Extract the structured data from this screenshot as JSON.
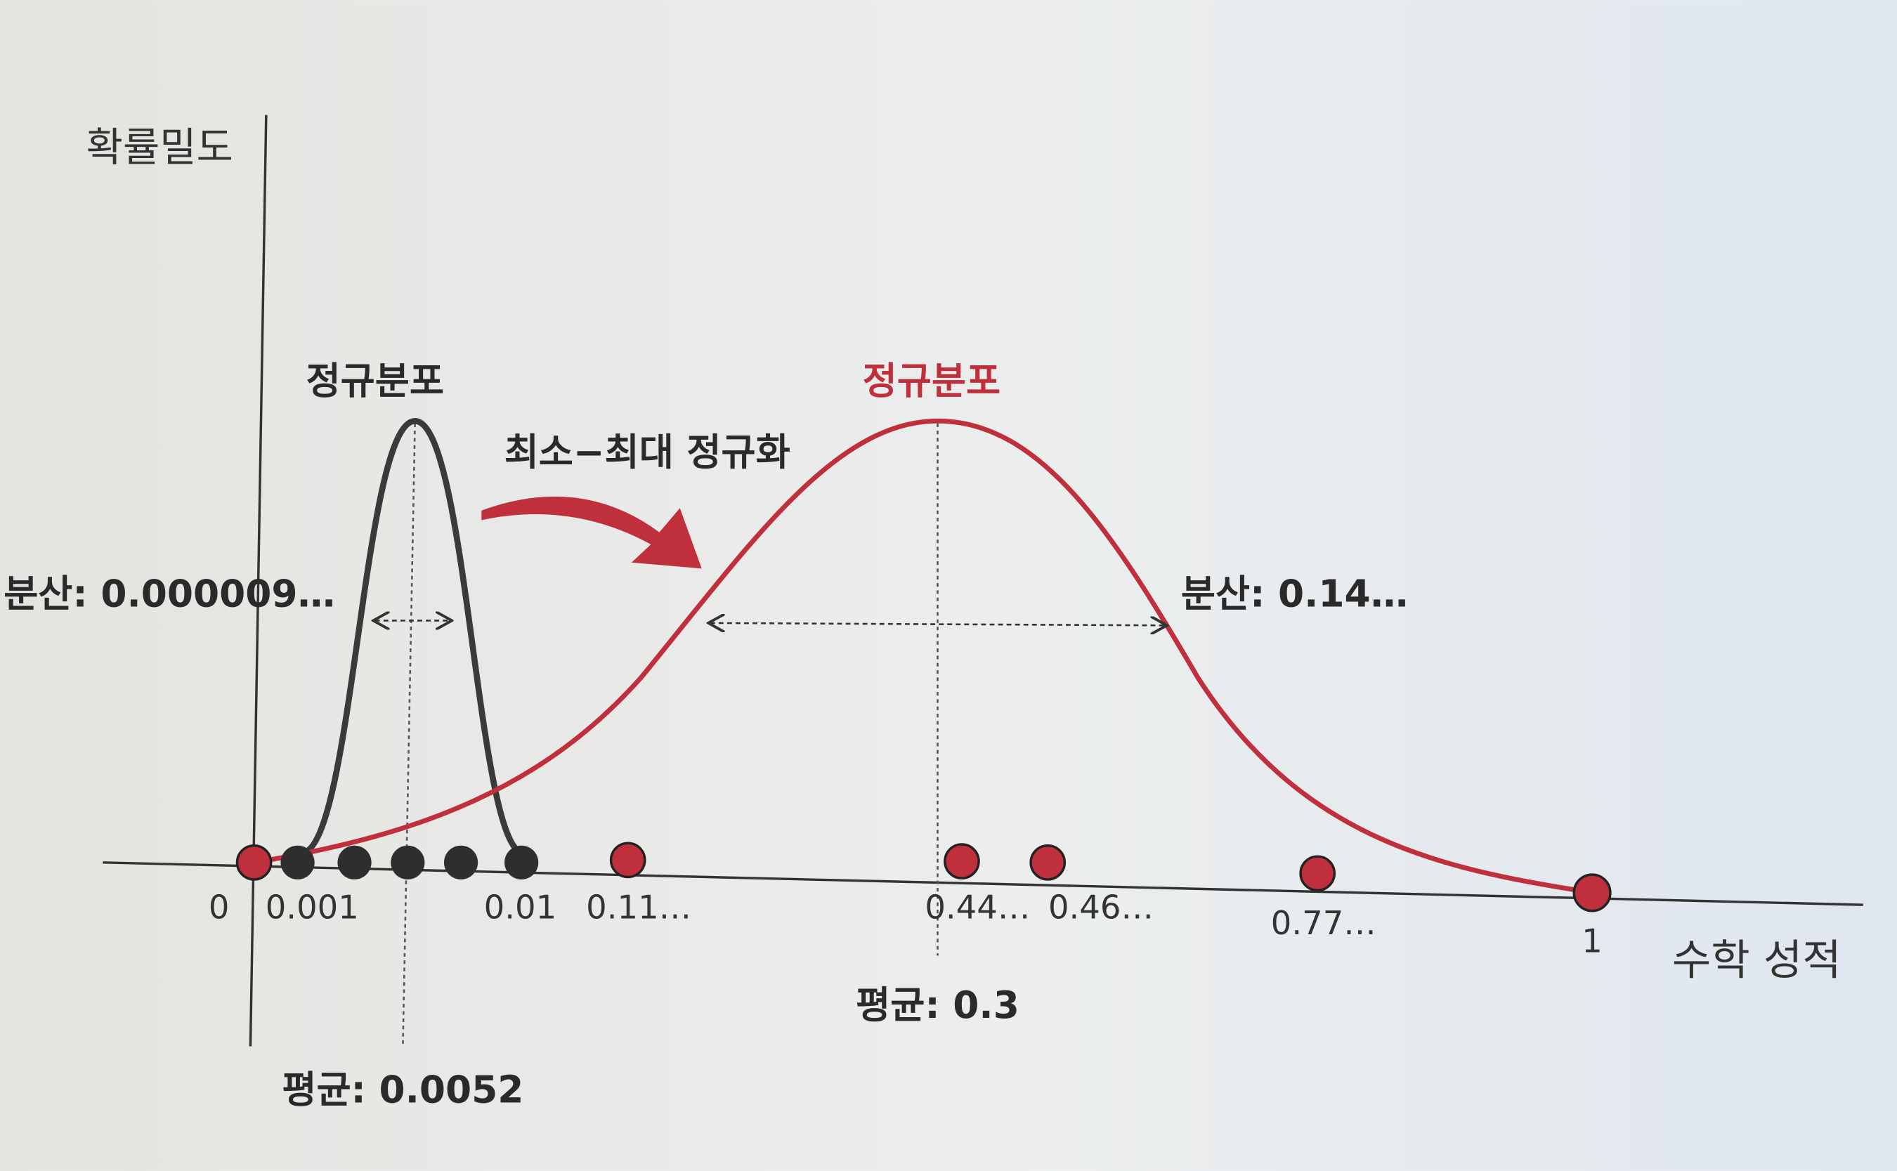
{
  "y_axis": {
    "label": "확률밀도"
  },
  "x_axis": {
    "label": "수학 성적",
    "tick_labels": [
      "0",
      "0.001",
      "0.01",
      "0.11…",
      "0.44…",
      "0.46…",
      "0.77…",
      "1"
    ]
  },
  "transform_label": "최소−최대 정규화",
  "original": {
    "label": "정규분포",
    "variance": "분산: 0.000009…",
    "mean": "평균: 0.0052"
  },
  "normalized": {
    "label": "정규분포",
    "variance": "분산: 0.14…",
    "mean": "평균: 0.3"
  }
}
